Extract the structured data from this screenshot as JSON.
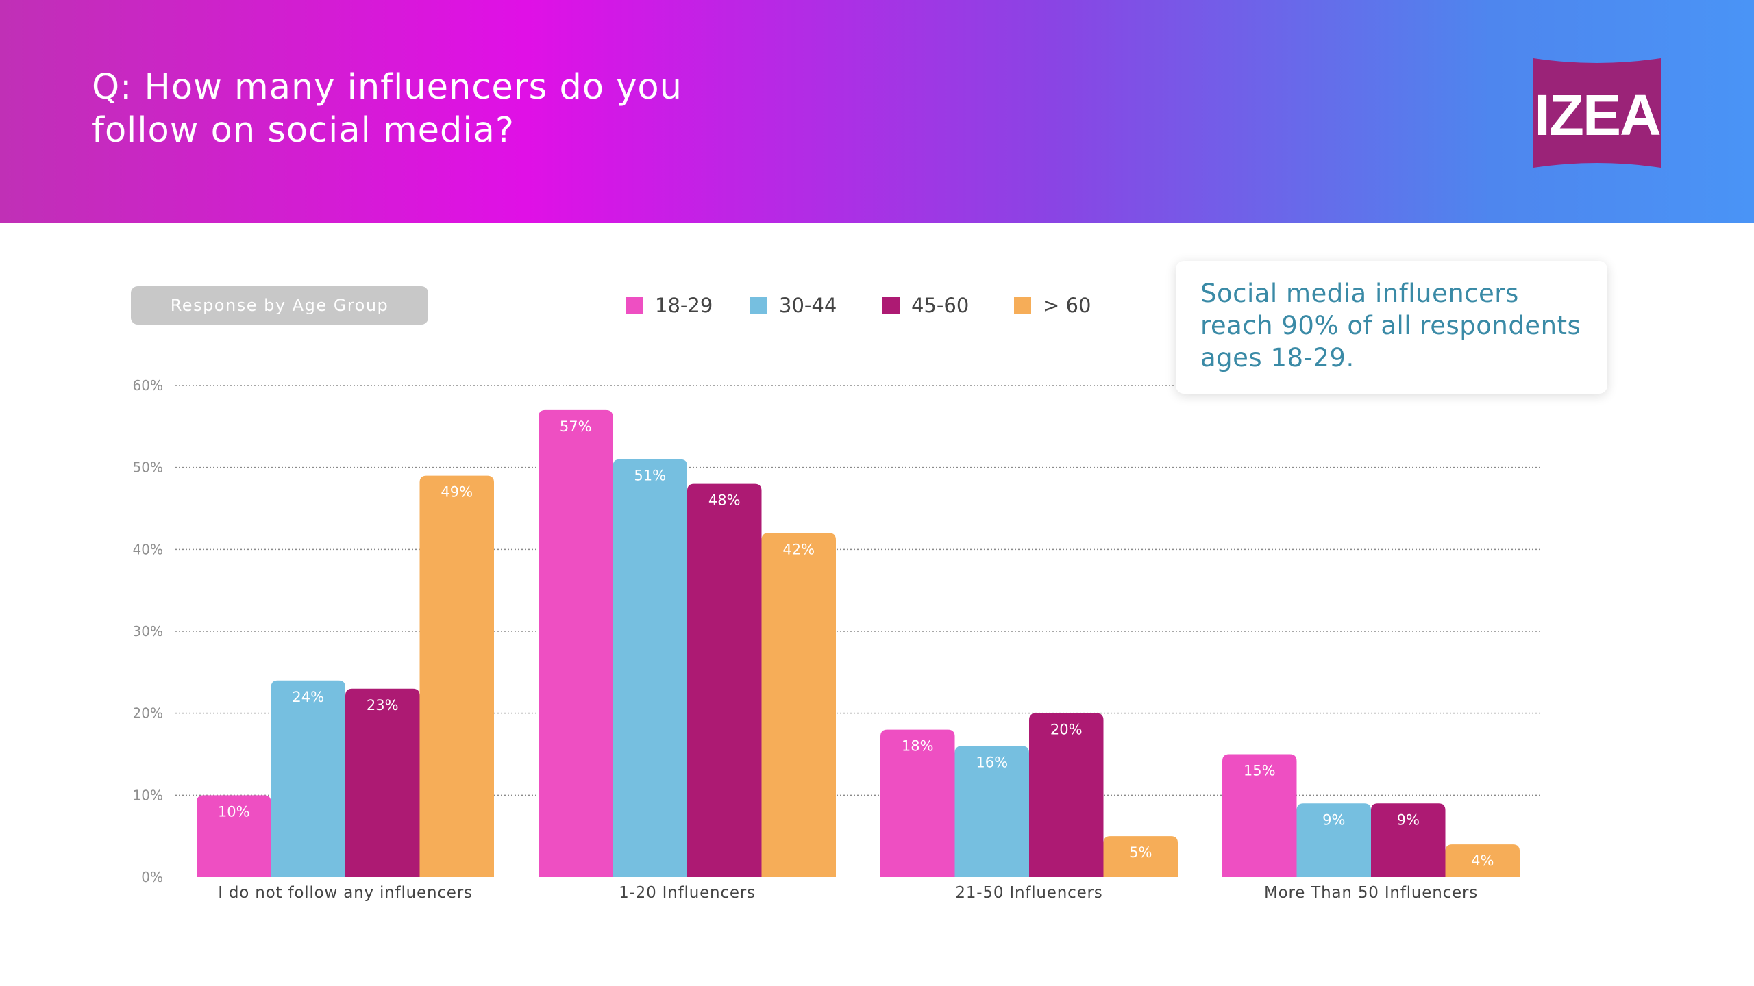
{
  "header": {
    "title": "Q: How many influencers do you follow on social media?",
    "logo_text": "IZEA"
  },
  "filter_label": "Response by Age Group",
  "callout": {
    "text": "Social media influencers reach 90% of all respondents ages 18-29."
  },
  "chart_data": {
    "type": "bar",
    "categories": [
      "I do not follow any influencers",
      "1-20 Influencers",
      "21-50 Influencers",
      "More Than 50 Influencers"
    ],
    "series": [
      {
        "name": "18-29",
        "color": "#ee4fc2",
        "values": [
          10,
          57,
          18,
          15
        ]
      },
      {
        "name": "30-44",
        "color": "#76bfe0",
        "values": [
          24,
          51,
          16,
          9
        ]
      },
      {
        "name": "45-60",
        "color": "#ad1a73",
        "values": [
          23,
          48,
          20,
          9
        ]
      },
      {
        "name": "> 60",
        "color": "#f6ad58",
        "values": [
          49,
          42,
          5,
          4
        ]
      }
    ],
    "ylim": [
      0,
      60
    ],
    "yticks": [
      0,
      10,
      20,
      30,
      40,
      50,
      60
    ],
    "ytick_labels": [
      "0%",
      "10%",
      "20%",
      "30%",
      "40%",
      "50%",
      "60%"
    ],
    "value_labels": [
      [
        "10%",
        "57%",
        "18%",
        "15%"
      ],
      [
        "24%",
        "51%",
        "16%",
        "9%"
      ],
      [
        "23%",
        "48%",
        "20%",
        "9%"
      ],
      [
        "49%",
        "42%",
        "5%",
        "4%"
      ]
    ],
    "grid": true,
    "legend": "top-center"
  }
}
